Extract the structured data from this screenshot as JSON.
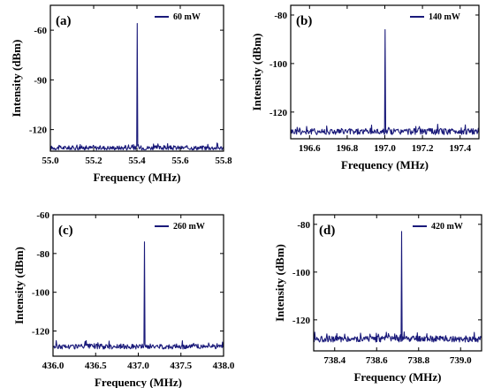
{
  "colors": {
    "series": "#1a1a7a",
    "axis": "#000000"
  },
  "chart_data": [
    {
      "type": "line",
      "panel_label": "(a)",
      "legend": "60 mW",
      "xlabel": "Frequency (MHz)",
      "ylabel": "Intensity (dBm)",
      "xlim": [
        55.0,
        55.8
      ],
      "ylim": [
        -133,
        -45
      ],
      "xticks": [
        "55.0",
        "55.2",
        "55.4",
        "55.6",
        "55.8"
      ],
      "yticks": [
        "-120",
        "-90",
        "-60"
      ],
      "xtick_values": [
        55.0,
        55.2,
        55.4,
        55.6,
        55.8
      ],
      "ytick_values": [
        -120,
        -90,
        -60
      ],
      "noise_floor": -131,
      "peak": {
        "x": 55.4,
        "y": -56
      }
    },
    {
      "type": "line",
      "panel_label": "(b)",
      "legend": "140 mW",
      "xlabel": "Frequency (MHz)",
      "ylabel": "Intensity (dBm)",
      "xlim": [
        196.5,
        197.5
      ],
      "ylim": [
        -131,
        -76
      ],
      "xticks": [
        "196.6",
        "196.8",
        "197.0",
        "197.2",
        "197.4"
      ],
      "yticks": [
        "-120",
        "-100",
        "-80"
      ],
      "xtick_values": [
        196.6,
        196.8,
        197.0,
        197.2,
        197.4
      ],
      "ytick_values": [
        -120,
        -100,
        -80
      ],
      "noise_floor": -128,
      "peak": {
        "x": 197.0,
        "y": -86
      }
    },
    {
      "type": "line",
      "panel_label": "(c)",
      "legend": "260 mW",
      "xlabel": "Frequency (MHz)",
      "ylabel": "Intensity (dBm)",
      "xlim": [
        436.0,
        438.0
      ],
      "ylim": [
        -133,
        -60
      ],
      "xticks": [
        "436.0",
        "436.5",
        "437.0",
        "437.5",
        "438.0"
      ],
      "yticks": [
        "-120",
        "-100",
        "-80",
        "-60"
      ],
      "xtick_values": [
        436.0,
        436.5,
        437.0,
        437.5,
        438.0
      ],
      "ytick_values": [
        -120,
        -100,
        -80,
        -60
      ],
      "noise_floor": -128,
      "peak": {
        "x": 437.07,
        "y": -74
      }
    },
    {
      "type": "line",
      "panel_label": "(d)",
      "legend": "420 mW",
      "xlabel": "Frequency (MHz)",
      "ylabel": "Intensity (dBm)",
      "xlim": [
        738.3,
        739.1
      ],
      "ylim": [
        -133,
        -76
      ],
      "xticks": [
        "738.4",
        "738.6",
        "738.8",
        "739.0"
      ],
      "yticks": [
        "-120",
        "-100",
        "-80"
      ],
      "xtick_values": [
        738.4,
        738.6,
        738.8,
        739.0
      ],
      "ytick_values": [
        -120,
        -100,
        -80
      ],
      "noise_floor": -128,
      "peak": {
        "x": 738.72,
        "y": -83
      }
    }
  ]
}
